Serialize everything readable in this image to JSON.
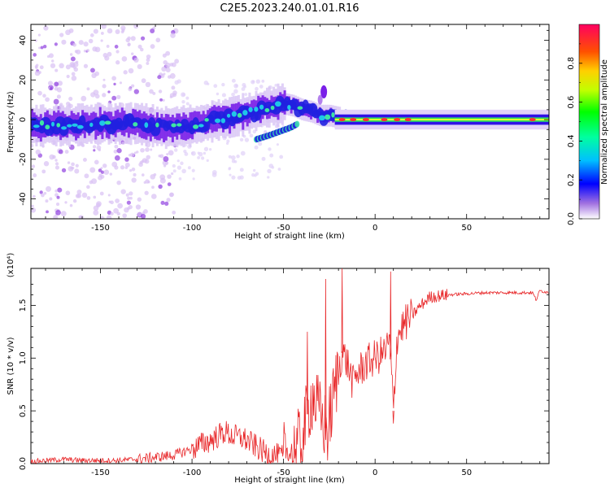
{
  "title": "C2E5.2023.240.01.01.R16",
  "chart_data": [
    {
      "type": "heatmap",
      "xlabel": "Height of straight line (km)",
      "ylabel": "Frequency (Hz)",
      "xlim": [
        -188,
        95
      ],
      "ylim": [
        -50,
        48
      ],
      "xticks": [
        -150,
        -100,
        -50,
        0,
        50
      ],
      "yticks": [
        -40,
        -20,
        0,
        20,
        40
      ],
      "colorbar": {
        "label": "Normalized spectral amplitude",
        "range": [
          0.0,
          1.0
        ],
        "ticks": [
          "0.0",
          "0.2",
          "0.4",
          "0.6",
          "0.8"
        ]
      },
      "ridge": {
        "x": [
          -188,
          -170,
          -150,
          -130,
          -115,
          -100,
          -90,
          -80,
          -70,
          -60,
          -55,
          -50,
          -45,
          -40,
          -35,
          -30,
          -25,
          -20,
          -15,
          -10,
          0,
          10,
          20,
          50,
          95
        ],
        "y": [
          -3,
          -3,
          -2,
          -2,
          -4,
          -3,
          -1,
          1,
          3,
          6,
          7,
          8,
          7,
          5,
          4,
          2,
          2,
          1,
          0.5,
          0.5,
          0,
          0,
          0,
          0,
          0
        ]
      },
      "ridge_branch": {
        "x": [
          -65,
          -58,
          -52,
          -46,
          -42
        ],
        "y": [
          -10,
          -8,
          -6,
          -4,
          -2
        ]
      }
    },
    {
      "type": "line",
      "xlabel": "Height of straight line (km)",
      "ylabel": "SNR (10 * v/v)",
      "scale_label": "(x10⁴)",
      "xlim": [
        -188,
        95
      ],
      "ylim": [
        0,
        1.85
      ],
      "xticks": [
        -150,
        -100,
        -50,
        0,
        50
      ],
      "yticks": [
        "0.0",
        "0.5",
        "1.0",
        "1.5"
      ],
      "series": [
        {
          "color": "#e8282a",
          "x": [
            -188,
            -170,
            -160,
            -140,
            -125,
            -110,
            -100,
            -90,
            -82,
            -78,
            -72,
            -65,
            -60,
            -55,
            -50,
            -45,
            -40,
            -36,
            -34,
            -30,
            -26,
            -22,
            -20,
            -18,
            -15,
            -12,
            -10,
            -5,
            0,
            5,
            8,
            10,
            12,
            15,
            20,
            25,
            30,
            40,
            50,
            60,
            70,
            80,
            86,
            88,
            90,
            95
          ],
          "y": [
            0.02,
            0.04,
            0.03,
            0.03,
            0.05,
            0.08,
            0.14,
            0.22,
            0.3,
            0.26,
            0.24,
            0.16,
            0.1,
            0.08,
            0.06,
            0.1,
            0.22,
            0.55,
            0.65,
            0.45,
            0.3,
            0.7,
            0.9,
            1.05,
            0.95,
            0.75,
            0.85,
            0.95,
            1.0,
            1.05,
            1.15,
            0.5,
            1.2,
            1.3,
            1.4,
            1.5,
            1.58,
            1.6,
            1.61,
            1.62,
            1.62,
            1.62,
            1.62,
            1.55,
            1.64,
            1.62
          ]
        }
      ],
      "spikes": [
        {
          "x": -37,
          "y": 1.25
        },
        {
          "x": -27,
          "y": 1.75
        },
        {
          "x": -18,
          "y": 1.85
        },
        {
          "x": 8.5,
          "y": 1.82
        },
        {
          "x": 10,
          "y": 0.38
        }
      ]
    }
  ]
}
